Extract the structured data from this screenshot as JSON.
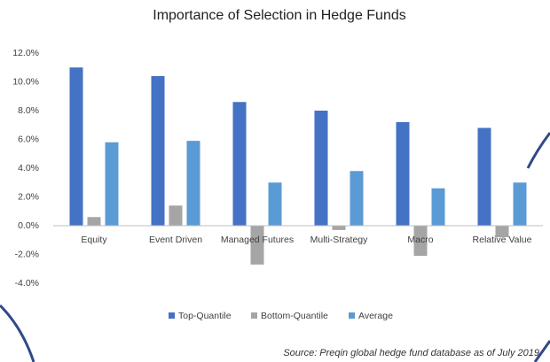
{
  "chart_data": {
    "type": "bar",
    "title": "Importance of Selection in Hedge Funds",
    "categories": [
      "Equity",
      "Event Driven",
      "Managed Futures",
      "Multi-Strategy",
      "Macro",
      "Relative Value"
    ],
    "series": [
      {
        "name": "Top-Quantile",
        "color": "#4472c4",
        "values": [
          11.0,
          10.4,
          8.6,
          8.0,
          7.2,
          6.8
        ]
      },
      {
        "name": "Bottom-Quantile",
        "color": "#a5a5a5",
        "values": [
          0.6,
          1.4,
          -2.7,
          -0.3,
          -2.1,
          -0.8
        ]
      },
      {
        "name": "Average",
        "color": "#5b9bd5",
        "values": [
          5.8,
          5.9,
          3.0,
          3.8,
          2.6,
          3.0
        ]
      }
    ],
    "ylim": [
      -4,
      12
    ],
    "yticks": [
      {
        "value": -4,
        "label": "-4.0%"
      },
      {
        "value": -2,
        "label": "-2.0%"
      },
      {
        "value": 0,
        "label": "0.0%"
      },
      {
        "value": 2,
        "label": "2.0%"
      },
      {
        "value": 4,
        "label": "4.0%"
      },
      {
        "value": 6,
        "label": "6.0%"
      },
      {
        "value": 8,
        "label": "8.0%"
      },
      {
        "value": 10,
        "label": "10.0%"
      },
      {
        "value": 12,
        "label": "12.0%"
      }
    ],
    "legend": "bottom",
    "source": "Source: Preqin global hedge fund database as of July 2019"
  }
}
